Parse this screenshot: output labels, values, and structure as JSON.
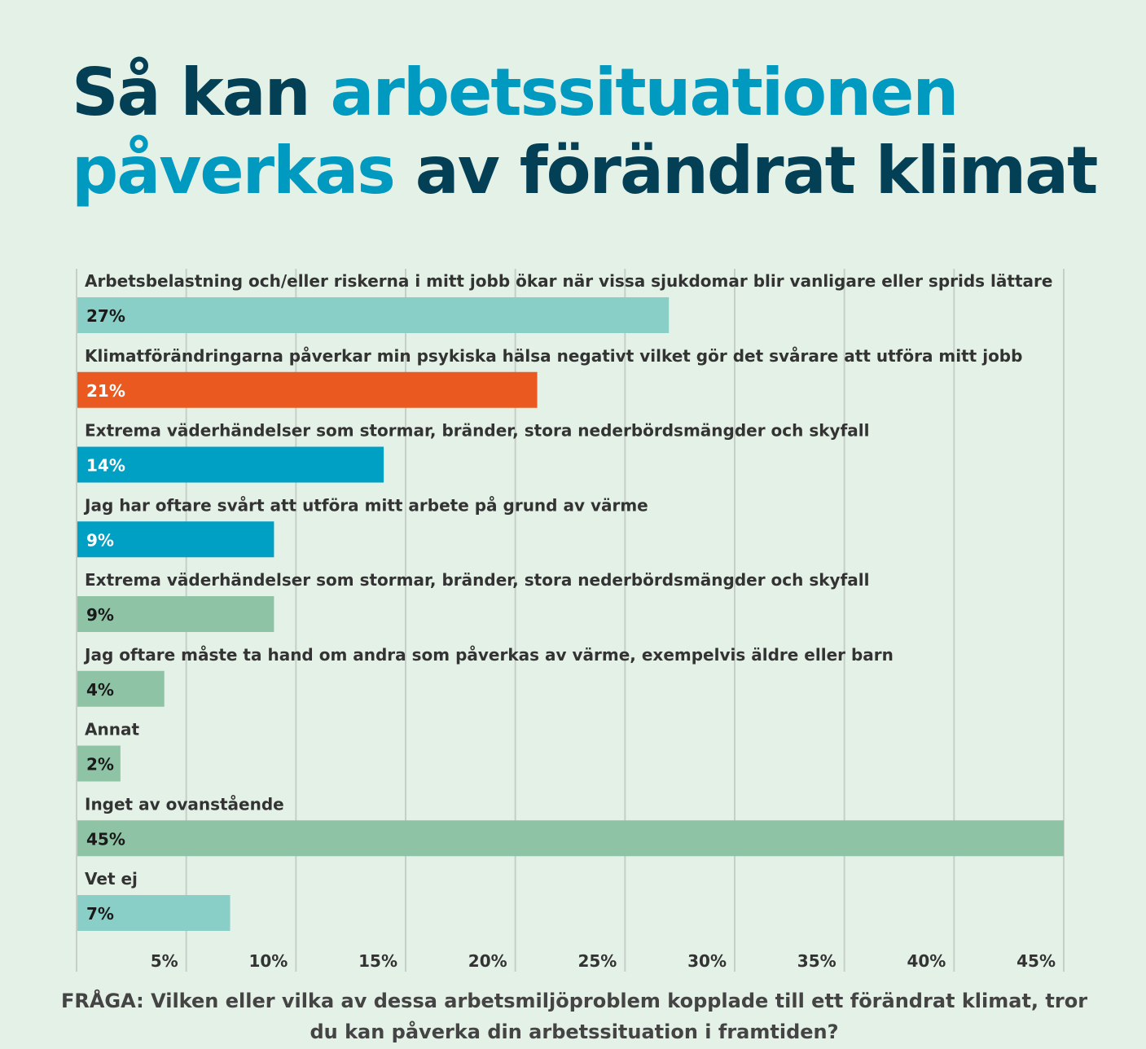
{
  "title": {
    "part1": "Så kan ",
    "part2": "arbetssituationen",
    "part3": "påverkas",
    "part4": " av förändrat klimat"
  },
  "footer": {
    "question": "FRÅGA: Vilken eller vilka av dessa arbetsmiljöproblem kopplade till ett förändrat klimat, tror du kan påverka din arbetssituation i framtiden?"
  },
  "colors": {
    "background": "#e4f1e7",
    "teal": "#8acfc7",
    "orange": "#ea5920",
    "blue": "#009fc4",
    "green": "#8fc3a5",
    "title_dark": "#033f55",
    "title_accent": "#0099c0",
    "grid": "#c5cfc8"
  },
  "chart_data": {
    "type": "bar",
    "orientation": "horizontal",
    "xlim": [
      0,
      45
    ],
    "x_ticks": [
      "5%",
      "10%",
      "15%",
      "20%",
      "25%",
      "30%",
      "35%",
      "40%",
      "45%"
    ],
    "grid": true,
    "categories": [
      "Arbetsbelastning och/eller riskerna i mitt jobb ökar när vissa sjukdomar blir vanligare eller sprids lättare",
      "Klimatförändringarna påverkar min psykiska hälsa negativt vilket gör det svårare att utföra mitt jobb",
      "Extrema väderhändelser som stormar, bränder, stora nederbördsmängder och skyfall",
      "Jag har oftare svårt att utföra mitt arbete på grund av värme",
      "Extrema väderhändelser som stormar, bränder, stora nederbördsmängder och skyfall",
      "Jag oftare måste ta hand om andra som påverkas av värme, exempelvis äldre eller barn",
      "Annat",
      "Inget av ovanstående",
      "Vet ej"
    ],
    "values": [
      27,
      21,
      14,
      9,
      9,
      4,
      2,
      45,
      7
    ],
    "value_labels": [
      "27%",
      "21%",
      "14%",
      "9%",
      "9%",
      "4%",
      "2%",
      "45%",
      "7%"
    ],
    "bar_colors": [
      "#8acfc7",
      "#ea5920",
      "#009fc4",
      "#009fc4",
      "#8fc3a5",
      "#8fc3a5",
      "#8fc3a5",
      "#8fc3a5",
      "#8acfc7"
    ],
    "label_colors": [
      "#1a1a1a",
      "#ffffff",
      "#ffffff",
      "#ffffff",
      "#1a1a1a",
      "#1a1a1a",
      "#1a1a1a",
      "#1a1a1a",
      "#1a1a1a"
    ]
  }
}
